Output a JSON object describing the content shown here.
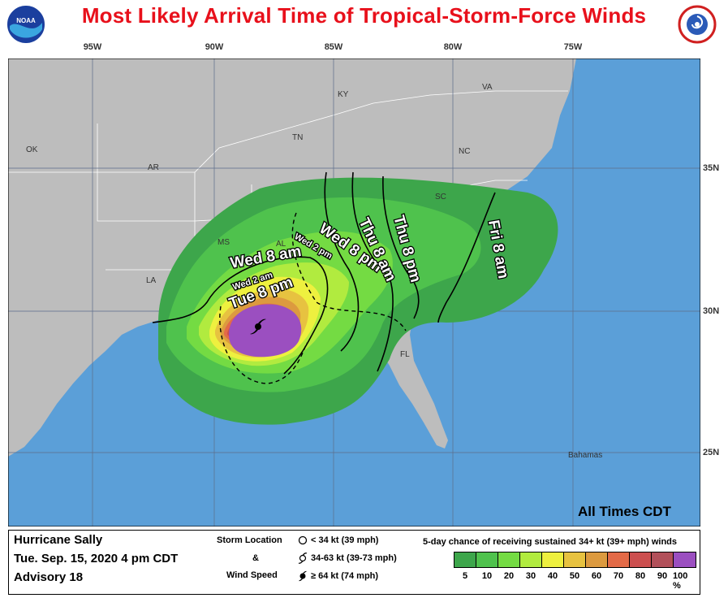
{
  "title": "Most Likely Arrival Time of Tropical-Storm-Force Winds",
  "logos": {
    "left": "NOAA",
    "right": "NATIONAL WEATHER SERVICE"
  },
  "longitudes": [
    "95W",
    "90W",
    "85W",
    "80W",
    "75W"
  ],
  "latitudes": [
    "35N",
    "30N",
    "25N"
  ],
  "states": [
    "OK",
    "AR",
    "MS",
    "AL",
    "LA",
    "TN",
    "KY",
    "VA",
    "NC",
    "SC",
    "FL",
    "Bahamas"
  ],
  "contour_labels": {
    "tue_8pm": "Tue 8 pm",
    "wed_2am": "Wed 2 am",
    "wed_8am": "Wed 8 am",
    "wed_2pm": "Wed 2 pm",
    "wed_8pm": "Wed 8 pm",
    "thu_8am": "Thu 8 am",
    "thu_8pm": "Thu 8 pm",
    "fri_8am": "Fri 8 am"
  },
  "all_times": "All Times CDT",
  "storm": {
    "name": "Hurricane Sally",
    "date": "Tue. Sep. 15, 2020  4 pm CDT",
    "advisory": "Advisory 18"
  },
  "storm_location": {
    "title": "Storm Location",
    "amp": "&",
    "speed": "Wind Speed",
    "items": [
      {
        "label": "< 34 kt (39 mph)",
        "symbol": "open-circle-icon"
      },
      {
        "label": "34-63 kt (39-73 mph)",
        "symbol": "tropical-storm-icon"
      },
      {
        "label": "≥ 64 kt (74 mph)",
        "symbol": "hurricane-icon"
      }
    ]
  },
  "legend": {
    "title": "5-day chance of receiving sustained 34+ kt (39+ mph) winds",
    "colors": [
      "#3da64b",
      "#4fc24d",
      "#74db43",
      "#b1eb3f",
      "#eef03f",
      "#e7c240",
      "#dc9a3f",
      "#e36a47",
      "#cc4f4f",
      "#b2505a",
      "#9b4fc0"
    ],
    "ticks": [
      "5",
      "10",
      "20",
      "30",
      "40",
      "50",
      "60",
      "70",
      "80",
      "90",
      "100 %"
    ]
  }
}
